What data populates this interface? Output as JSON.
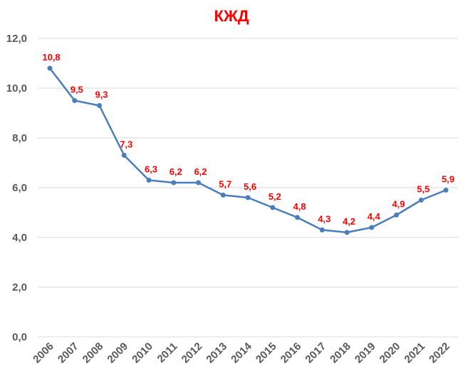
{
  "chart_data": {
    "type": "line",
    "title": "КЖД",
    "xlabel": "",
    "ylabel": "",
    "categories": [
      "2006",
      "2007",
      "2008",
      "2009",
      "2010",
      "2011",
      "2012",
      "2013",
      "2014",
      "2015",
      "2016",
      "2017",
      "2018",
      "2019",
      "2020",
      "2021",
      "2022"
    ],
    "series": [
      {
        "values": [
          10.8,
          9.5,
          9.3,
          7.3,
          6.3,
          6.2,
          6.2,
          5.7,
          5.6,
          5.2,
          4.8,
          4.3,
          4.2,
          4.4,
          4.9,
          5.5,
          5.9
        ],
        "data_labels": [
          "10,8",
          "9,5",
          "9,3",
          "7,3",
          "6,3",
          "6,2",
          "6,2",
          "5,7",
          "5,6",
          "5,2",
          "4,8",
          "4,3",
          "4,2",
          "4,4",
          "4,9",
          "5,5",
          "5,9"
        ],
        "color": "#4a7ebb"
      }
    ],
    "ylim": [
      0,
      12
    ],
    "yticks": [
      0,
      2,
      4,
      6,
      8,
      10,
      12
    ],
    "ytick_labels": [
      "0,0",
      "2,0",
      "4,0",
      "6,0",
      "8,0",
      "10,0",
      "12,0"
    ],
    "grid": true,
    "legend": "none",
    "colors": {
      "title": "#ff0000",
      "labels": "#ff0000",
      "axis_text": "#595959",
      "grid": "#d9d9d9"
    }
  }
}
